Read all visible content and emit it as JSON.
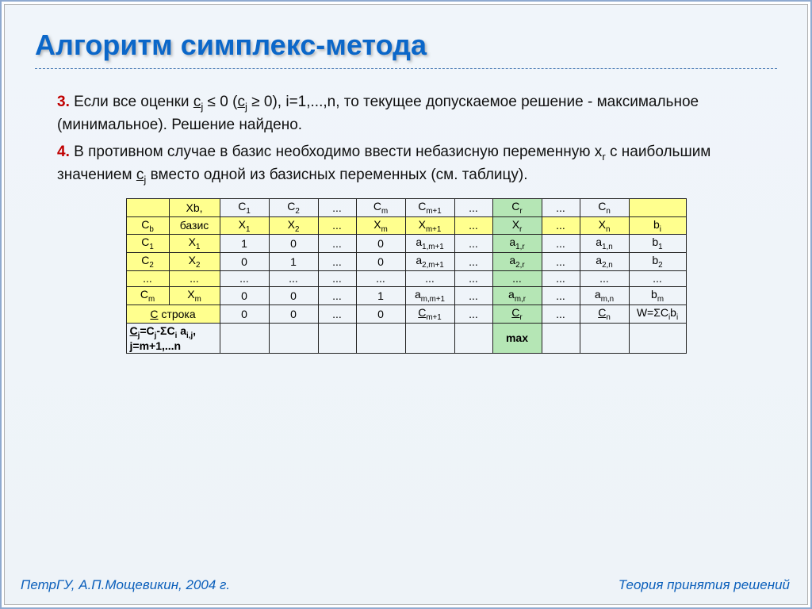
{
  "slide": {
    "title": "Алгоритм симплекс-метода",
    "step3_num": "3.",
    "step3_text_a": " Если все оценки ",
    "step3_cj1": "c",
    "step3_text_b": " ≤ 0 (",
    "step3_cj2": "c",
    "step3_text_c": " ≥ 0), i=1,...,n, то текущее допускаемое решение - максимальное (минимальное). Решение найдено.",
    "step4_num": "4.",
    "step4_text_a": " В противном случае в базис необходимо ввести небазисную переменную x",
    "step4_text_b": " с наибольшим значением ",
    "step4_cj": "c",
    "step4_text_c": " вместо одной из базисных переменных (см. таблицу).",
    "footer_formula_a": "C",
    "footer_formula_b": "=C",
    "footer_formula_c": "-ΣC",
    "footer_formula_d": " a",
    "footer_formula_e": ",   j=m+1,...n",
    "footer_max": "max",
    "footer_left": "ПетрГУ, А.П.Мощевикин, 2004 г.",
    "footer_right": "Теория принятия решений"
  },
  "table": {
    "colors": {
      "yellow": "#ffff8e",
      "green": "#b5e6b5",
      "border": "#222222"
    },
    "head_row1": [
      "",
      "Xb,",
      "C1",
      "C2",
      "...",
      "Cm",
      "Cm+1",
      "...",
      "Cr",
      "...",
      "Cn",
      ""
    ],
    "head_row2": [
      "Cb",
      "базис",
      "X1",
      "X2",
      "...",
      "Xm",
      "Xm+1",
      "...",
      "Xr",
      "...",
      "Xn",
      "bi"
    ],
    "rows": [
      [
        "C1",
        "X1",
        "1",
        "0",
        "...",
        "0",
        "a1,m+1",
        "...",
        "a1,r",
        "...",
        "a1,n",
        "b1"
      ],
      [
        "C2",
        "X2",
        "0",
        "1",
        "...",
        "0",
        "a2,m+1",
        "...",
        "a2,r",
        "...",
        "a2,n",
        "b2"
      ],
      [
        "...",
        "...",
        "...",
        "...",
        "...",
        "...",
        "...",
        "...",
        "...",
        "...",
        "...",
        "..."
      ],
      [
        "Cm",
        "Xm",
        "0",
        "0",
        "...",
        "1",
        "am,m+1",
        "...",
        "am,r",
        "...",
        "am,n",
        "bm"
      ]
    ],
    "c_row": [
      "C строка",
      "0",
      "0",
      "...",
      "0",
      "Cm+1",
      "...",
      "Cr",
      "...",
      "Cn",
      "W=ΣCibi"
    ]
  }
}
